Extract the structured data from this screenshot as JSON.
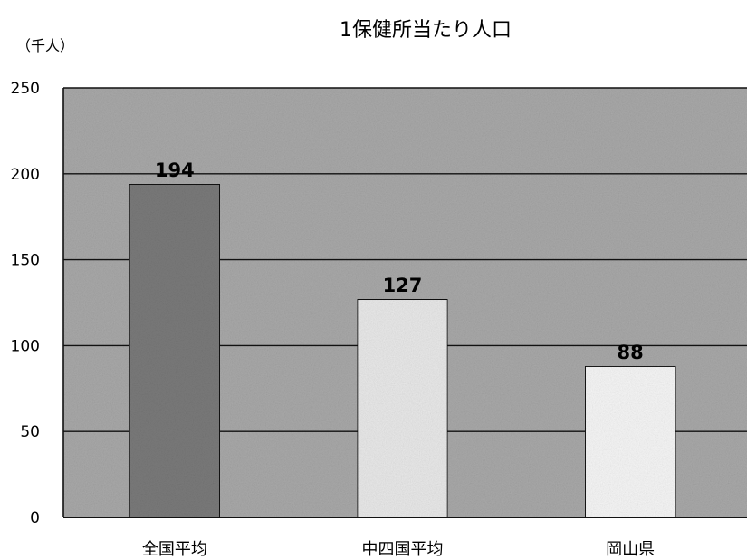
{
  "chart_data": {
    "type": "bar",
    "title": "1保健所当たり人口",
    "ylabel": "（千人）",
    "xlabel": "",
    "categories": [
      "全国平均",
      "中四国平均",
      "岡山県"
    ],
    "values": [
      194,
      127,
      88
    ],
    "ylim": [
      0,
      250
    ],
    "yticks": [
      0,
      50,
      100,
      150,
      200,
      250
    ],
    "grid": true,
    "legend": "none",
    "colors": {
      "plot_background": "#a9a9a9",
      "bars": [
        "#7a7a7a",
        "#e9e9e9",
        "#f6f6f6"
      ],
      "gridline": "#111111"
    }
  }
}
